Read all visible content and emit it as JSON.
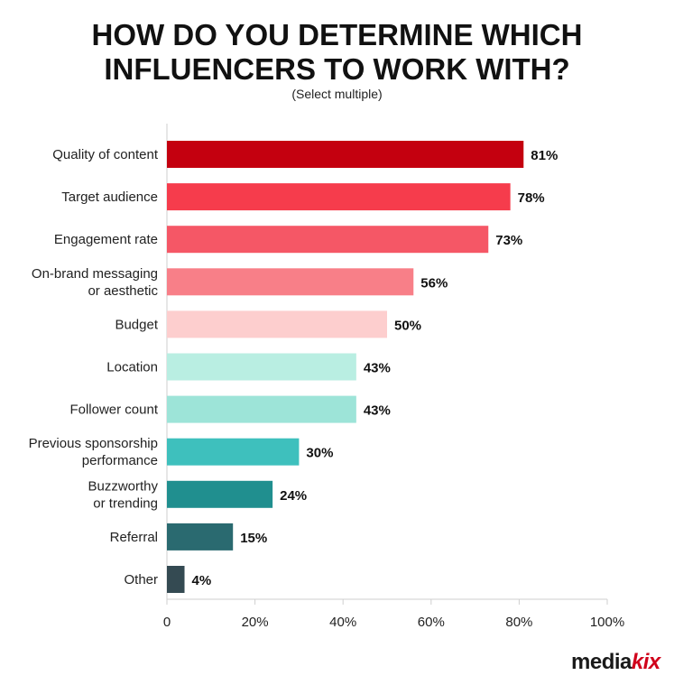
{
  "header": {
    "title_line1": "HOW DO YOU DETERMINE WHICH",
    "title_line2": "INFLUENCERS TO WORK WITH?",
    "subtitle": "(Select multiple)"
  },
  "logo": {
    "part1": "media",
    "part2": "kix"
  },
  "chart_data": {
    "type": "bar",
    "orientation": "horizontal",
    "title": "HOW DO YOU DETERMINE WHICH INFLUENCERS TO WORK WITH?",
    "subtitle": "(Select multiple)",
    "categories": [
      [
        "Quality of content"
      ],
      [
        "Target audience"
      ],
      [
        "Engagement rate"
      ],
      [
        "On-brand messaging",
        "or aesthetic"
      ],
      [
        "Budget"
      ],
      [
        "Location"
      ],
      [
        "Follower count"
      ],
      [
        "Previous sponsorship",
        "performance"
      ],
      [
        "Buzzworthy",
        "or trending"
      ],
      [
        "Referral"
      ],
      [
        "Other"
      ]
    ],
    "values": [
      81,
      78,
      73,
      56,
      50,
      43,
      43,
      30,
      24,
      15,
      4
    ],
    "value_labels": [
      "81%",
      "78%",
      "73%",
      "56%",
      "50%",
      "43%",
      "43%",
      "30%",
      "24%",
      "15%",
      "4%"
    ],
    "colors": [
      "#c4000f",
      "#f63c4c",
      "#f55766",
      "#f87f88",
      "#fdcece",
      "#b9eee2",
      "#9de4d8",
      "#3ec0bd",
      "#208f8f",
      "#2a6a70",
      "#344a52"
    ],
    "xlim": [
      0,
      100
    ],
    "xticks": [
      "0",
      "20%",
      "40%",
      "60%",
      "80%",
      "100%"
    ],
    "grid": false,
    "legend": "none"
  }
}
